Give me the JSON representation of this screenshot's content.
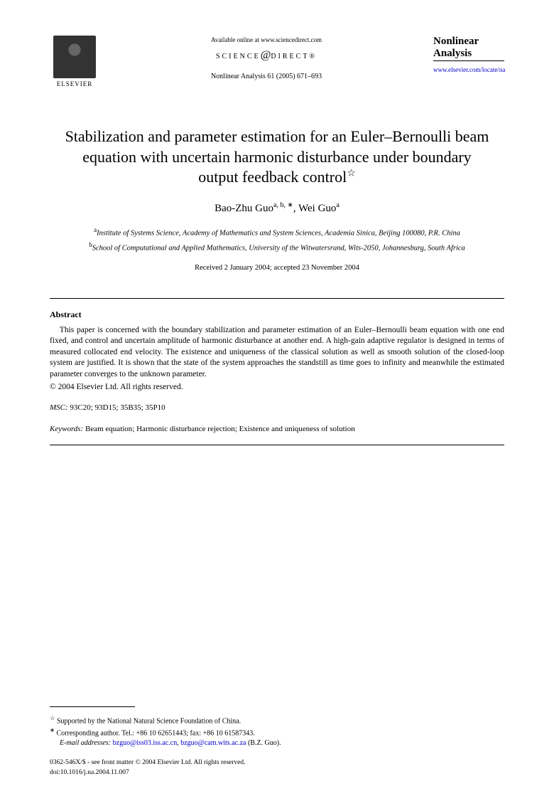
{
  "header": {
    "publisher": "ELSEVIER",
    "available": "Available online at www.sciencedirect.com",
    "science_direct_prefix": "SCIENCE",
    "science_direct_suffix": "DIRECT®",
    "citation": "Nonlinear Analysis 61 (2005) 671–693",
    "journal_name_line1": "Nonlinear",
    "journal_name_line2": "Analysis",
    "journal_link": "www.elsevier.com/locate/na"
  },
  "title": "Stabilization and parameter estimation for an Euler–Bernoulli beam equation with uncertain harmonic disturbance under boundary output feedback control",
  "title_mark": "☆",
  "authors": {
    "a1_name": "Bao-Zhu Guo",
    "a1_sup": "a, b, ∗",
    "a2_name": "Wei Guo",
    "a2_sup": "a"
  },
  "affiliations": {
    "a": "Institute of Systems Science, Academy of Mathematics and System Sciences, Academia Sinica, Beijing 100080, P.R. China",
    "b": "School of Computational and Applied Mathematics, University of the Witwatersrand, Wits-2050, Johannesburg, South Africa"
  },
  "dates": "Received 2 January 2004; accepted 23 November 2004",
  "abstract": {
    "heading": "Abstract",
    "text": "This paper is concerned with the boundary stabilization and parameter estimation of an Euler–Bernoulli beam equation with one end fixed, and control and uncertain amplitude of harmonic disturbance at another end. A high-gain adaptive regulator is designed in terms of measured collocated end velocity. The existence and uniqueness of the classical solution as well as smooth solution of the closed-loop system are justified. It is shown that the state of the system approaches the standstill as time goes to infinity and meanwhile the estimated parameter converges to the unknown parameter.",
    "copyright": "© 2004 Elsevier Ltd. All rights reserved."
  },
  "msc": {
    "label": "MSC:",
    "codes": "93C20; 93D15; 35B35; 35P10"
  },
  "keywords": {
    "label": "Keywords:",
    "text": "Beam equation; Harmonic disturbance rejection; Existence and uniqueness of solution"
  },
  "footnotes": {
    "funding_mark": "☆",
    "funding": "Supported by the National Natural Science Foundation of China.",
    "corr_mark": "∗",
    "corr": "Corresponding author. Tel.: +86 10 62651443; fax: +86 10 61587343.",
    "email_label": "E-mail addresses:",
    "email1": "bzguo@iss03.iss.ac.cn",
    "email2": "bzguo@cam.wits.ac.za",
    "email_suffix": "(B.Z. Guo)."
  },
  "footer": {
    "line1": "0362-546X/$ - see front matter © 2004 Elsevier Ltd. All rights reserved.",
    "line2": "doi:10.1016/j.na.2004.11.007"
  }
}
